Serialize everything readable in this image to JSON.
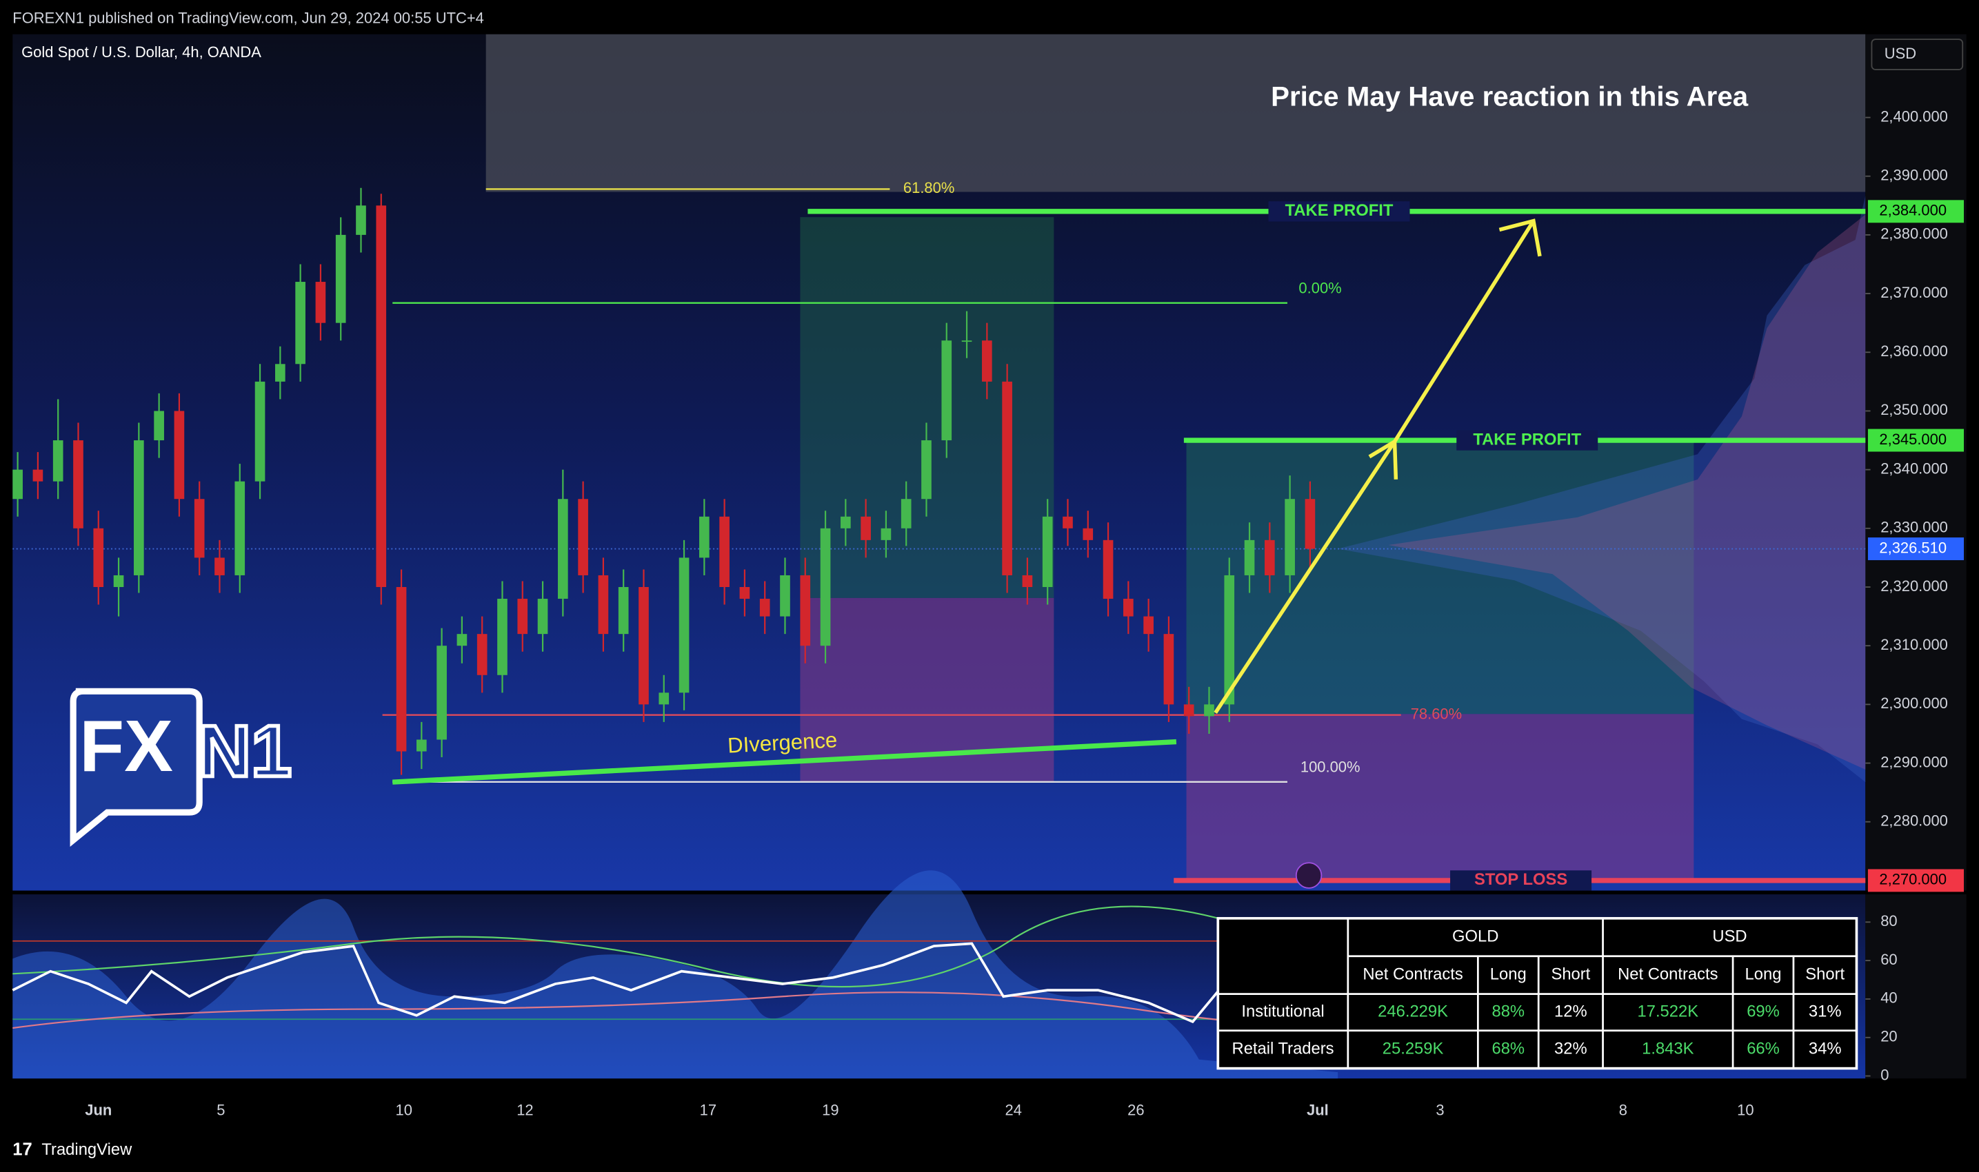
{
  "header": {
    "publisher": "FOREXN1 published on TradingView.com, Jun 29, 2024 00:55 UTC+4"
  },
  "chart": {
    "symbol": "Gold Spot / U.S. Dollar, 4h, OANDA",
    "currency": "USD",
    "annotation": "Price May Have reaction in this Area",
    "divergence": "DIvergence",
    "logo": {
      "left": "FX",
      "right": "N1"
    },
    "price_axis": [
      {
        "value": 2400,
        "label": "2,400.000"
      },
      {
        "value": 2390,
        "label": "2,390.000"
      },
      {
        "value": 2380,
        "label": "2,380.000"
      },
      {
        "value": 2370,
        "label": "2,370.000"
      },
      {
        "value": 2360,
        "label": "2,360.000"
      },
      {
        "value": 2350,
        "label": "2,350.000"
      },
      {
        "value": 2340,
        "label": "2,340.000"
      },
      {
        "value": 2330,
        "label": "2,330.000"
      },
      {
        "value": 2320,
        "label": "2,320.000"
      },
      {
        "value": 2310,
        "label": "2,310.000"
      },
      {
        "value": 2300,
        "label": "2,300.000"
      },
      {
        "value": 2290,
        "label": "2,290.000"
      },
      {
        "value": 2280,
        "label": "2,280.000"
      }
    ],
    "levels": [
      {
        "name": "TAKE PROFIT",
        "value": 2384,
        "label": "2,384.000"
      },
      {
        "name": "TAKE PROFIT",
        "value": 2345,
        "label": "2,345.000"
      },
      {
        "name": "STOP LOSS",
        "value": 2270,
        "label": "2,270.000"
      }
    ],
    "last_price": {
      "value": 2326.51,
      "label": "2,326.510"
    },
    "fib": [
      {
        "label": "61.80%",
        "value": 2387.8
      },
      {
        "label": "0.00%",
        "value": 2368.4
      },
      {
        "label": "78.60%",
        "value": 2298.2
      },
      {
        "label": "100.00%",
        "value": 2286.8
      }
    ],
    "candles": [
      [
        2335,
        2343,
        2332,
        2340
      ],
      [
        2340,
        2343,
        2335,
        2338
      ],
      [
        2338,
        2352,
        2335,
        2345
      ],
      [
        2345,
        2348,
        2327,
        2330
      ],
      [
        2330,
        2333,
        2317,
        2320
      ],
      [
        2320,
        2325,
        2315,
        2322
      ],
      [
        2322,
        2348,
        2319,
        2345
      ],
      [
        2345,
        2353,
        2342,
        2350
      ],
      [
        2350,
        2353,
        2332,
        2335
      ],
      [
        2335,
        2338,
        2322,
        2325
      ],
      [
        2325,
        2328,
        2319,
        2322
      ],
      [
        2322,
        2341,
        2319,
        2338
      ],
      [
        2338,
        2358,
        2335,
        2355
      ],
      [
        2355,
        2361,
        2352,
        2358
      ],
      [
        2358,
        2375,
        2355,
        2372
      ],
      [
        2372,
        2375,
        2362,
        2365
      ],
      [
        2365,
        2383,
        2362,
        2380
      ],
      [
        2380,
        2388,
        2377,
        2385
      ],
      [
        2385,
        2387,
        2317,
        2320
      ],
      [
        2320,
        2323,
        2288,
        2292
      ],
      [
        2292,
        2297,
        2289,
        2294
      ],
      [
        2294,
        2313,
        2291,
        2310
      ],
      [
        2310,
        2315,
        2307,
        2312
      ],
      [
        2312,
        2315,
        2302,
        2305
      ],
      [
        2305,
        2321,
        2302,
        2318
      ],
      [
        2318,
        2321,
        2309,
        2312
      ],
      [
        2312,
        2321,
        2309,
        2318
      ],
      [
        2318,
        2340,
        2315,
        2335
      ],
      [
        2335,
        2338,
        2319,
        2322
      ],
      [
        2322,
        2325,
        2309,
        2312
      ],
      [
        2312,
        2323,
        2309,
        2320
      ],
      [
        2320,
        2323,
        2297,
        2300
      ],
      [
        2300,
        2305,
        2297,
        2302
      ],
      [
        2302,
        2328,
        2299,
        2325
      ],
      [
        2325,
        2335,
        2322,
        2332
      ],
      [
        2332,
        2335,
        2317,
        2320
      ],
      [
        2320,
        2323,
        2315,
        2318
      ],
      [
        2318,
        2321,
        2312,
        2315
      ],
      [
        2315,
        2325,
        2312,
        2322
      ],
      [
        2322,
        2325,
        2307,
        2310
      ],
      [
        2310,
        2333,
        2307,
        2330
      ],
      [
        2330,
        2335,
        2327,
        2332
      ],
      [
        2332,
        2335,
        2325,
        2328
      ],
      [
        2328,
        2333,
        2325,
        2330
      ],
      [
        2330,
        2338,
        2327,
        2335
      ],
      [
        2335,
        2348,
        2332,
        2345
      ],
      [
        2345,
        2365,
        2342,
        2362
      ],
      [
        2362,
        2367,
        2359,
        2362
      ],
      [
        2362,
        2365,
        2352,
        2355
      ],
      [
        2355,
        2358,
        2319,
        2322
      ],
      [
        2322,
        2325,
        2317,
        2320
      ],
      [
        2320,
        2335,
        2317,
        2332
      ],
      [
        2332,
        2335,
        2327,
        2330
      ],
      [
        2330,
        2333,
        2325,
        2328
      ],
      [
        2328,
        2331,
        2315,
        2318
      ],
      [
        2318,
        2321,
        2312,
        2315
      ],
      [
        2315,
        2318,
        2309,
        2312
      ],
      [
        2312,
        2315,
        2297,
        2300
      ],
      [
        2300,
        2303,
        2295,
        2298
      ],
      [
        2298,
        2303,
        2295,
        2300
      ],
      [
        2300,
        2325,
        2297,
        2322
      ],
      [
        2322,
        2331,
        2319,
        2328
      ],
      [
        2328,
        2331,
        2319,
        2322
      ],
      [
        2322,
        2339,
        2319,
        2335
      ],
      [
        2335,
        2338,
        2323,
        2326.51
      ]
    ],
    "dates": [
      "Jun",
      "5",
      "10",
      "12",
      "17",
      "19",
      "24",
      "26",
      "Jul",
      "3",
      "8",
      "10"
    ],
    "indicator_axis": [
      80,
      60,
      40,
      20,
      0
    ]
  },
  "table": {
    "groups": [
      "GOLD",
      "USD"
    ],
    "columns": [
      "Net Contracts",
      "Long",
      "Short",
      "Net Contracts",
      "Long",
      "Short"
    ],
    "rows": [
      [
        "Institutional",
        "246.229K",
        "88%",
        "12%",
        "17.522K",
        "69%",
        "31%"
      ],
      [
        "Retail Traders",
        "25.259K",
        "68%",
        "32%",
        "1.843K",
        "66%",
        "34%"
      ]
    ]
  },
  "footer": {
    "brand": "TradingView"
  }
}
